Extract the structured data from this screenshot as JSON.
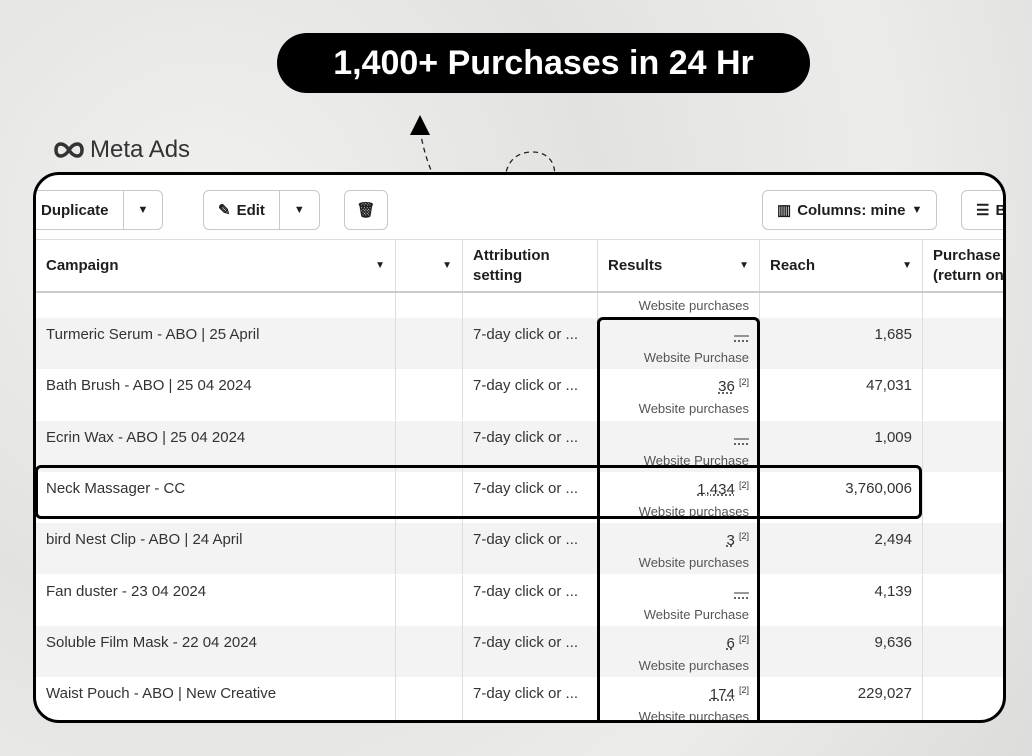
{
  "headline": "1,400+ Purchases in 24 Hr",
  "logo": {
    "text": "Meta Ads"
  },
  "toolbar": {
    "duplicate": "Duplicate",
    "edit": "Edit",
    "columns": "Columns: mine",
    "breakdown": "B"
  },
  "columns": {
    "campaign": "Campaign",
    "attribution1": "Attribution",
    "attribution2": "setting",
    "results": "Results",
    "reach": "Reach",
    "purchase1": "Purchase",
    "purchase2": "(return on"
  },
  "results_subheader": "Website purchases",
  "rows": [
    {
      "campaign": "Turmeric Serum - ABO | 25 April",
      "attribution": "7-day click or ...",
      "results": "—",
      "footnote": "",
      "results_label": "Website Purchase",
      "reach": "1,685"
    },
    {
      "campaign": "Bath Brush - ABO | 25 04 2024",
      "attribution": "7-day click or ...",
      "results": "36",
      "footnote": "[2]",
      "results_label": "Website purchases",
      "reach": "47,031"
    },
    {
      "campaign": "Ecrin Wax - ABO | 25 04 2024",
      "attribution": "7-day click or ...",
      "results": "—",
      "footnote": "",
      "results_label": "Website Purchase",
      "reach": "1,009"
    },
    {
      "campaign": "Neck Massager - CC",
      "attribution": "7-day click or ...",
      "results": "1,434",
      "footnote": "[2]",
      "results_label": "Website purchases",
      "reach": "3,760,006"
    },
    {
      "campaign": "bird Nest Clip - ABO | 24 April",
      "attribution": "7-day click or ...",
      "results": "3",
      "footnote": "[2]",
      "results_label": "Website purchases",
      "reach": "2,494"
    },
    {
      "campaign": "Fan duster - 23 04 2024",
      "attribution": "7-day click or ...",
      "results": "—",
      "footnote": "",
      "results_label": "Website Purchase",
      "reach": "4,139"
    },
    {
      "campaign": "Soluble Film Mask - 22 04 2024",
      "attribution": "7-day click or ...",
      "results": "6",
      "footnote": "[2]",
      "results_label": "Website purchases",
      "reach": "9,636"
    },
    {
      "campaign": "Waist Pouch - ABO | New Creative",
      "attribution": "7-day click or ...",
      "results": "174",
      "footnote": "[2]",
      "results_label": "Website purchases",
      "reach": "229,027"
    }
  ]
}
